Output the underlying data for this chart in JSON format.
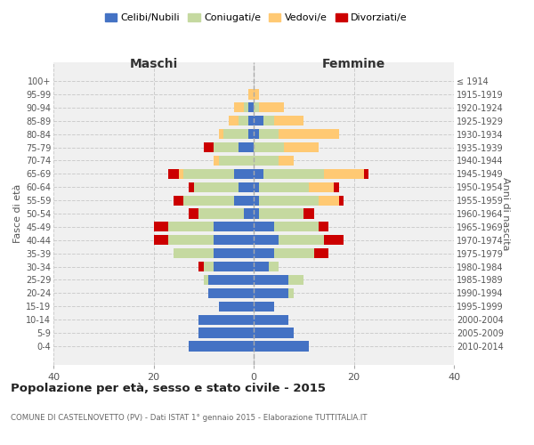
{
  "age_groups": [
    "100+",
    "95-99",
    "90-94",
    "85-89",
    "80-84",
    "75-79",
    "70-74",
    "65-69",
    "60-64",
    "55-59",
    "50-54",
    "45-49",
    "40-44",
    "35-39",
    "30-34",
    "25-29",
    "20-24",
    "15-19",
    "10-14",
    "5-9",
    "0-4"
  ],
  "birth_years": [
    "≤ 1914",
    "1915-1919",
    "1920-1924",
    "1925-1929",
    "1930-1934",
    "1935-1939",
    "1940-1944",
    "1945-1949",
    "1950-1954",
    "1955-1959",
    "1960-1964",
    "1965-1969",
    "1970-1974",
    "1975-1979",
    "1980-1984",
    "1985-1989",
    "1990-1994",
    "1995-1999",
    "2000-2004",
    "2005-2009",
    "2010-2014"
  ],
  "maschi": {
    "celibi": [
      0,
      0,
      1,
      1,
      1,
      3,
      0,
      4,
      3,
      4,
      2,
      8,
      8,
      8,
      8,
      9,
      9,
      7,
      11,
      11,
      13
    ],
    "coniugati": [
      0,
      0,
      1,
      2,
      5,
      5,
      7,
      10,
      9,
      10,
      9,
      9,
      9,
      8,
      2,
      1,
      0,
      0,
      0,
      0,
      0
    ],
    "vedovi": [
      0,
      1,
      2,
      2,
      1,
      0,
      1,
      1,
      0,
      0,
      0,
      0,
      0,
      0,
      0,
      0,
      0,
      0,
      0,
      0,
      0
    ],
    "divorziati": [
      0,
      0,
      0,
      0,
      0,
      2,
      0,
      2,
      1,
      2,
      2,
      3,
      3,
      0,
      1,
      0,
      0,
      0,
      0,
      0,
      0
    ]
  },
  "femmine": {
    "nubili": [
      0,
      0,
      0,
      2,
      1,
      0,
      0,
      2,
      1,
      1,
      1,
      4,
      5,
      4,
      3,
      7,
      7,
      4,
      7,
      8,
      11
    ],
    "coniugate": [
      0,
      0,
      1,
      2,
      4,
      6,
      5,
      12,
      10,
      12,
      9,
      9,
      9,
      8,
      2,
      3,
      1,
      0,
      0,
      0,
      0
    ],
    "vedove": [
      0,
      1,
      5,
      6,
      12,
      7,
      3,
      8,
      5,
      4,
      0,
      0,
      0,
      0,
      0,
      0,
      0,
      0,
      0,
      0,
      0
    ],
    "divorziate": [
      0,
      0,
      0,
      0,
      0,
      0,
      0,
      1,
      1,
      1,
      2,
      2,
      4,
      3,
      0,
      0,
      0,
      0,
      0,
      0,
      0
    ]
  },
  "colors": {
    "celibi": "#4472C4",
    "coniugati": "#c5d9a0",
    "vedovi": "#ffc973",
    "divorziati": "#cc0000"
  },
  "title": "Popolazione per età, sesso e stato civile - 2015",
  "subtitle": "COMUNE DI CASTELNOVETTO (PV) - Dati ISTAT 1° gennaio 2015 - Elaborazione TUTTITALIA.IT",
  "xlabel_left": "Maschi",
  "xlabel_right": "Femmine",
  "ylabel_left": "Fasce di età",
  "ylabel_right": "Anni di nascita",
  "xlim": 40,
  "legend_labels": [
    "Celibi/Nubili",
    "Coniugati/e",
    "Vedovi/e",
    "Divorziati/e"
  ],
  "background_color": "#f0f0f0"
}
